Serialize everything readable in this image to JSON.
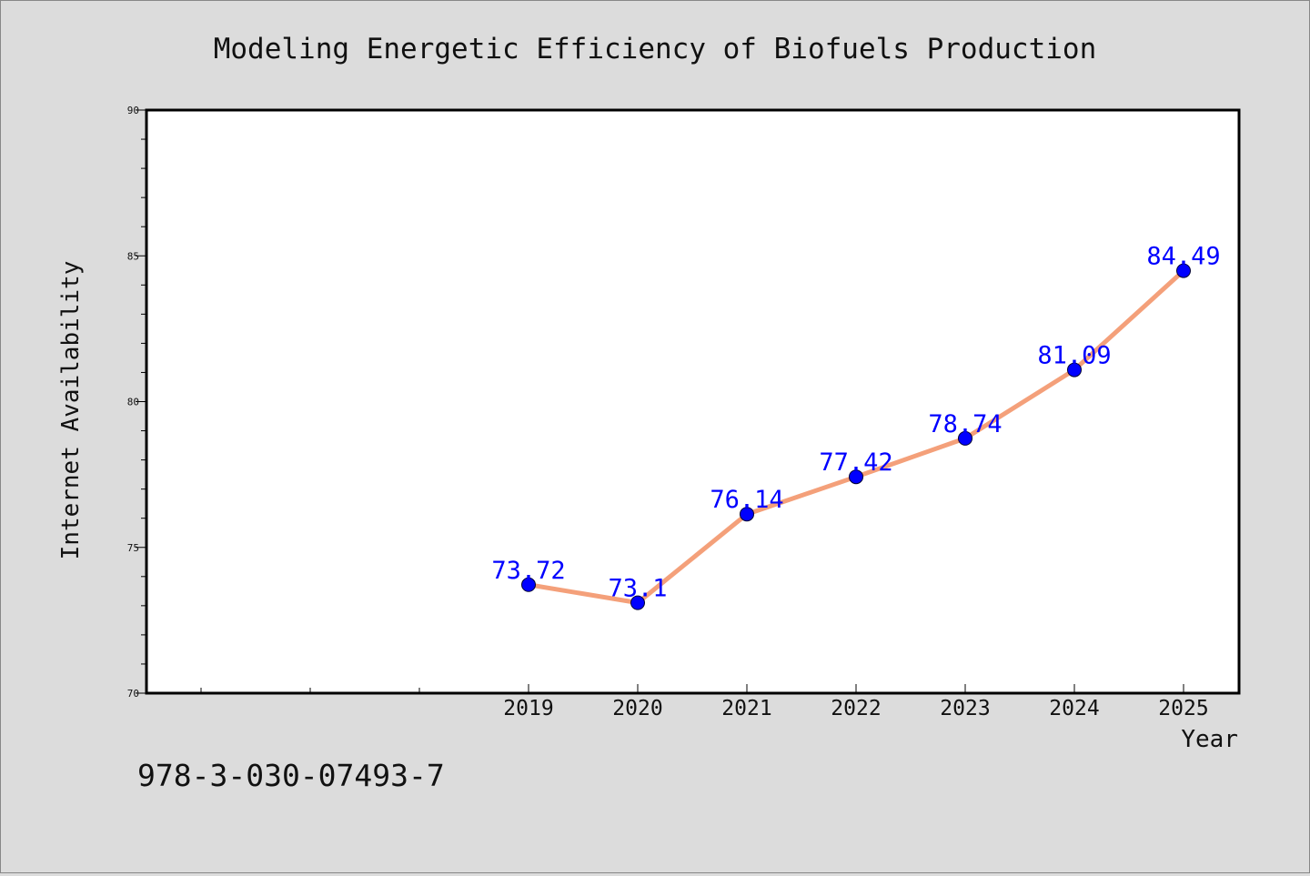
{
  "colors": {
    "background": "#dcdcdc",
    "plot_background": "#ffffff",
    "line": "#f4a07a",
    "marker": "#0000ff",
    "data_label": "#0000ff",
    "text": "#111111"
  },
  "figure": {
    "footer_text": "978-3-030-07493-7"
  },
  "chart_data": {
    "type": "line",
    "title": "Modeling Energetic Efficiency of Biofuels Production",
    "xlabel": "Year",
    "ylabel": "Internet Availability",
    "x": [
      "2019",
      "2020",
      "2021",
      "2022",
      "2023",
      "2024",
      "2025"
    ],
    "series": [
      {
        "values": [
          73.72,
          73.1,
          76.14,
          77.42,
          78.74,
          81.09,
          84.49
        ],
        "data_labels": [
          "73.72",
          "73.1",
          "76.14",
          "77.42",
          "78.74",
          "81.09",
          "84.49"
        ]
      }
    ],
    "ylim": [
      70,
      90
    ],
    "y_ticks": [
      70,
      75,
      80,
      85,
      90
    ],
    "x_tick_labels": [
      "2019",
      "2020",
      "2021",
      "2022",
      "2023",
      "2024",
      "2025"
    ],
    "grid": false,
    "legend": "none"
  }
}
